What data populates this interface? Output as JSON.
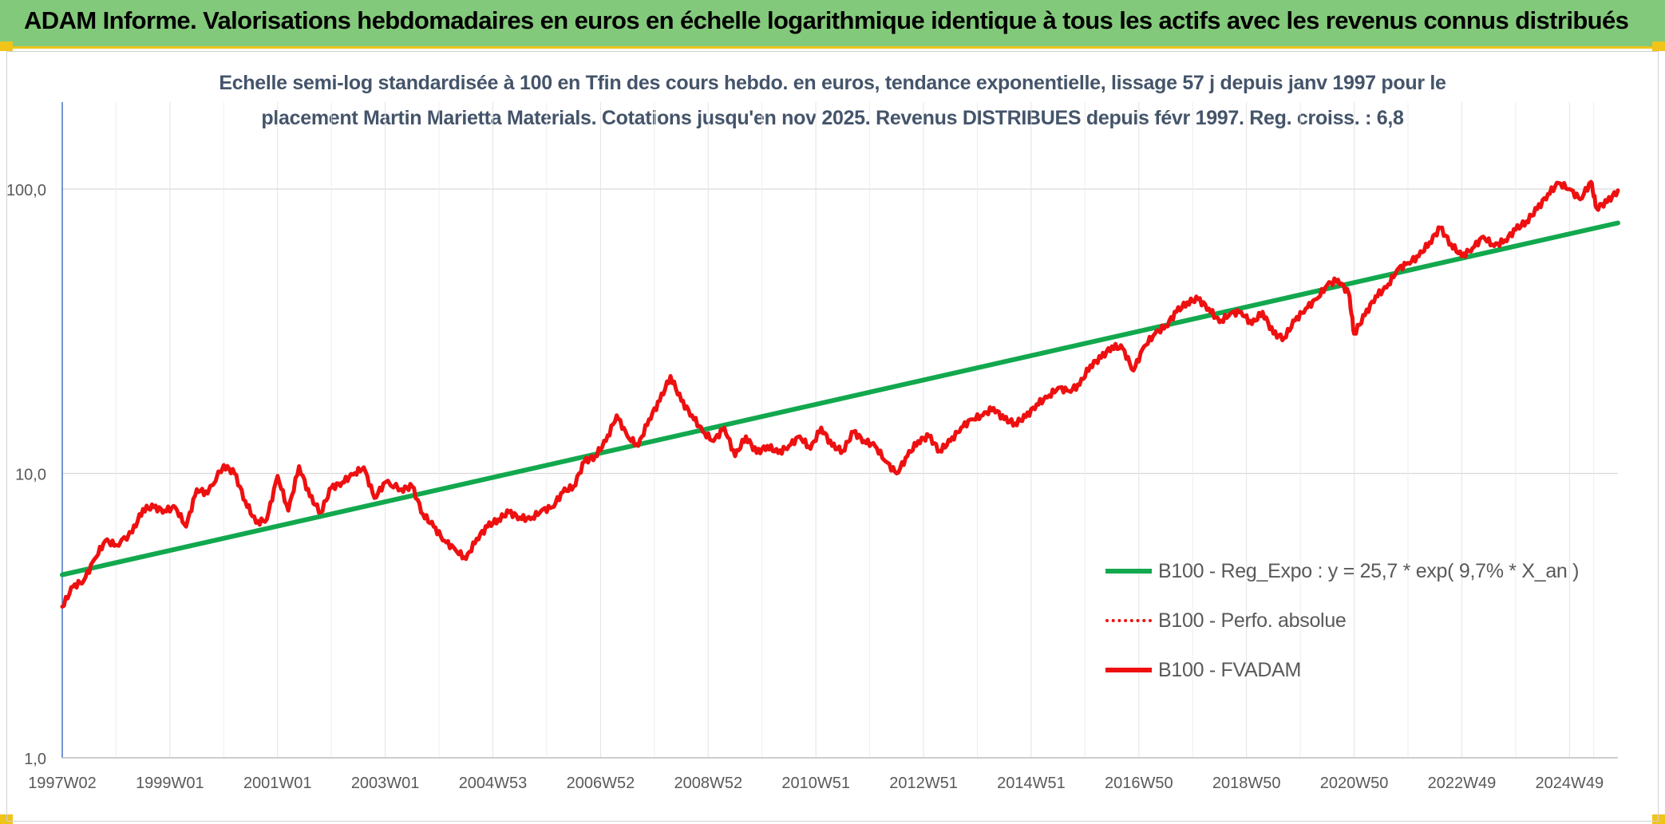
{
  "header": {
    "title": "ADAM Informe. Valorisations hebdomadaires en euros en échelle logarithmique identique à tous les actifs avec les revenus connus distribués"
  },
  "chart_data": {
    "type": "line",
    "title_line1": "Echelle semi-log standardisée à 100 en Tfin des cours hebdo. en euros, tendance exponentielle, lissage 57 j depuis janv 1997 pour le",
    "title_line2": "placement Martin Marietta Materials. Cotations jusqu'en nov 2025. Revenus DISTRIBUES depuis févr 1997. Reg. croiss. : 6,8",
    "y_scale": "log",
    "ylim": [
      1,
      200
    ],
    "y_ticks": [
      {
        "value": 1,
        "label": "1,0"
      },
      {
        "value": 10,
        "label": "10,0"
      },
      {
        "value": 100,
        "label": "100,0"
      }
    ],
    "x_range": [
      1997.0,
      2025.9
    ],
    "x_ticks": [
      {
        "x": 1997.0,
        "label": "1997W02"
      },
      {
        "x": 1999.0,
        "label": "1999W01"
      },
      {
        "x": 2001.0,
        "label": "2001W01"
      },
      {
        "x": 2003.0,
        "label": "2003W01"
      },
      {
        "x": 2005.0,
        "label": "2004W53"
      },
      {
        "x": 2007.0,
        "label": "2006W52"
      },
      {
        "x": 2009.0,
        "label": "2008W52"
      },
      {
        "x": 2011.0,
        "label": "2010W51"
      },
      {
        "x": 2013.0,
        "label": "2012W51"
      },
      {
        "x": 2015.0,
        "label": "2014W51"
      },
      {
        "x": 2017.0,
        "label": "2016W50"
      },
      {
        "x": 2019.0,
        "label": "2018W50"
      },
      {
        "x": 2021.0,
        "label": "2020W50"
      },
      {
        "x": 2023.0,
        "label": "2022W49"
      },
      {
        "x": 2025.0,
        "label": "2024W49"
      }
    ],
    "grid": true,
    "legend_position": "bottom-right",
    "series": [
      {
        "name": "B100 - Reg_Expo : y = 25,7 * exp( 9,7% *  X_an )",
        "color": "#12a84e",
        "style": "solid",
        "points": [
          [
            1997.0,
            4.4
          ],
          [
            2025.9,
            76.0
          ]
        ]
      },
      {
        "name": "B100 - Perfo. absolue",
        "color": "#ee1010",
        "style": "dotted",
        "points": []
      },
      {
        "name": "B100 - FVADAM",
        "color": "#ee1010",
        "style": "solid",
        "points": [
          [
            1997.0,
            3.4
          ],
          [
            1997.2,
            4.0
          ],
          [
            1997.4,
            4.2
          ],
          [
            1997.6,
            5.0
          ],
          [
            1997.8,
            5.8
          ],
          [
            1998.0,
            5.6
          ],
          [
            1998.3,
            6.2
          ],
          [
            1998.5,
            7.5
          ],
          [
            1998.7,
            7.6
          ],
          [
            1998.9,
            7.4
          ],
          [
            1999.1,
            7.6
          ],
          [
            1999.3,
            6.5
          ],
          [
            1999.5,
            8.8
          ],
          [
            1999.7,
            8.5
          ],
          [
            2000.0,
            10.7
          ],
          [
            2000.2,
            10.0
          ],
          [
            2000.4,
            8.0
          ],
          [
            2000.6,
            6.7
          ],
          [
            2000.8,
            6.9
          ],
          [
            2001.0,
            9.8
          ],
          [
            2001.2,
            7.4
          ],
          [
            2001.4,
            10.6
          ],
          [
            2001.6,
            8.3
          ],
          [
            2001.8,
            7.3
          ],
          [
            2002.0,
            8.9
          ],
          [
            2002.2,
            9.3
          ],
          [
            2002.4,
            9.9
          ],
          [
            2002.6,
            10.5
          ],
          [
            2002.8,
            8.2
          ],
          [
            2003.0,
            9.3
          ],
          [
            2003.3,
            8.8
          ],
          [
            2003.5,
            9.0
          ],
          [
            2003.7,
            7.2
          ],
          [
            2003.9,
            6.5
          ],
          [
            2004.1,
            5.8
          ],
          [
            2004.3,
            5.4
          ],
          [
            2004.5,
            5.0
          ],
          [
            2004.7,
            5.9
          ],
          [
            2004.9,
            6.5
          ],
          [
            2005.1,
            6.9
          ],
          [
            2005.3,
            7.3
          ],
          [
            2005.5,
            7.0
          ],
          [
            2005.7,
            6.9
          ],
          [
            2005.9,
            7.4
          ],
          [
            2006.1,
            7.6
          ],
          [
            2006.3,
            8.6
          ],
          [
            2006.5,
            9.0
          ],
          [
            2006.7,
            11.0
          ],
          [
            2006.9,
            11.5
          ],
          [
            2007.1,
            13.0
          ],
          [
            2007.3,
            16.0
          ],
          [
            2007.5,
            13.5
          ],
          [
            2007.7,
            12.5
          ],
          [
            2007.9,
            15.5
          ],
          [
            2008.1,
            18.0
          ],
          [
            2008.3,
            22.0
          ],
          [
            2008.5,
            18.0
          ],
          [
            2008.7,
            16.0
          ],
          [
            2008.9,
            14.0
          ],
          [
            2009.1,
            13.0
          ],
          [
            2009.3,
            14.5
          ],
          [
            2009.5,
            11.5
          ],
          [
            2009.7,
            13.5
          ],
          [
            2009.9,
            11.8
          ],
          [
            2010.1,
            12.5
          ],
          [
            2010.3,
            11.8
          ],
          [
            2010.5,
            12.5
          ],
          [
            2010.7,
            13.5
          ],
          [
            2010.9,
            12.2
          ],
          [
            2011.1,
            14.5
          ],
          [
            2011.3,
            12.5
          ],
          [
            2011.5,
            12.0
          ],
          [
            2011.7,
            14.0
          ],
          [
            2011.9,
            13.0
          ],
          [
            2012.1,
            12.5
          ],
          [
            2012.3,
            11.0
          ],
          [
            2012.5,
            10.0
          ],
          [
            2012.7,
            11.5
          ],
          [
            2012.9,
            13.0
          ],
          [
            2013.1,
            13.5
          ],
          [
            2013.3,
            12.0
          ],
          [
            2013.5,
            13.0
          ],
          [
            2013.7,
            14.5
          ],
          [
            2013.9,
            15.5
          ],
          [
            2014.1,
            16.0
          ],
          [
            2014.3,
            17.0
          ],
          [
            2014.5,
            15.5
          ],
          [
            2014.7,
            15.0
          ],
          [
            2014.9,
            15.8
          ],
          [
            2015.1,
            17.5
          ],
          [
            2015.3,
            18.5
          ],
          [
            2015.5,
            20.0
          ],
          [
            2015.7,
            19.5
          ],
          [
            2015.9,
            20.5
          ],
          [
            2016.1,
            24.0
          ],
          [
            2016.3,
            25.5
          ],
          [
            2016.5,
            28.0
          ],
          [
            2016.7,
            27.5
          ],
          [
            2016.9,
            23.0
          ],
          [
            2017.1,
            28.0
          ],
          [
            2017.3,
            31.0
          ],
          [
            2017.5,
            33.0
          ],
          [
            2017.7,
            37.0
          ],
          [
            2017.9,
            40.0
          ],
          [
            2018.1,
            41.0
          ],
          [
            2018.3,
            38.0
          ],
          [
            2018.5,
            34.0
          ],
          [
            2018.7,
            36.5
          ],
          [
            2018.9,
            37.0
          ],
          [
            2019.1,
            33.5
          ],
          [
            2019.3,
            37.0
          ],
          [
            2019.5,
            31.0
          ],
          [
            2019.7,
            30.0
          ],
          [
            2019.9,
            34.5
          ],
          [
            2020.1,
            38.0
          ],
          [
            2020.3,
            41.0
          ],
          [
            2020.5,
            46.0
          ],
          [
            2020.7,
            48.0
          ],
          [
            2020.9,
            43.0
          ],
          [
            2021.0,
            31.0
          ],
          [
            2021.2,
            36.0
          ],
          [
            2021.4,
            42.0
          ],
          [
            2021.6,
            45.0
          ],
          [
            2021.8,
            52.0
          ],
          [
            2022.0,
            55.0
          ],
          [
            2022.2,
            58.0
          ],
          [
            2022.4,
            65.0
          ],
          [
            2022.6,
            73.0
          ],
          [
            2022.8,
            64.0
          ],
          [
            2023.0,
            58.0
          ],
          [
            2023.2,
            62.0
          ],
          [
            2023.4,
            68.0
          ],
          [
            2023.6,
            63.0
          ],
          [
            2023.8,
            66.0
          ],
          [
            2024.0,
            72.0
          ],
          [
            2024.2,
            77.0
          ],
          [
            2024.4,
            85.0
          ],
          [
            2024.6,
            96.0
          ],
          [
            2024.8,
            105.0
          ],
          [
            2025.0,
            100.0
          ],
          [
            2025.2,
            92.0
          ],
          [
            2025.4,
            106.0
          ],
          [
            2025.5,
            86.0
          ],
          [
            2025.7,
            90.0
          ],
          [
            2025.9,
            99.0
          ]
        ]
      }
    ]
  }
}
